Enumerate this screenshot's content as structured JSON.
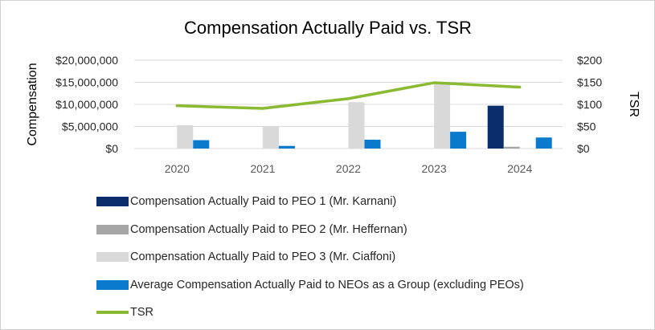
{
  "chart_data": {
    "type": "bar",
    "title": "Compensation Actually Paid vs. TSR",
    "xlabel": "",
    "ylabel": "Compensation",
    "y2label": "TSR",
    "categories": [
      "2020",
      "2021",
      "2022",
      "2023",
      "2024"
    ],
    "ylim": [
      0,
      20000000
    ],
    "y2lim": [
      0,
      200
    ],
    "yticks": [
      "$0",
      "$5,000,000",
      "$10,000,000",
      "$15,000,000",
      "$20,000,000"
    ],
    "y2ticks": [
      "$0",
      "$50",
      "$100",
      "$150",
      "$200"
    ],
    "grid": true,
    "legend_position": "bottom",
    "series": [
      {
        "name": "Compensation Actually Paid to PEO 1 (Mr. Karnani)",
        "kind": "bar",
        "axis": "left",
        "color": "#0b2d6b",
        "values": [
          0,
          0,
          0,
          0,
          9700000
        ]
      },
      {
        "name": "Compensation Actually Paid to PEO 2 (Mr. Heffernan)",
        "kind": "bar",
        "axis": "left",
        "color": "#a6a6a6",
        "values": [
          0,
          0,
          0,
          0,
          400000
        ]
      },
      {
        "name": "Compensation Actually Paid to PEO 3 (Mr. Ciaffoni)",
        "kind": "bar",
        "axis": "left",
        "color": "#d9d9d9",
        "values": [
          5300000,
          5100000,
          10500000,
          14700000,
          0
        ]
      },
      {
        "name": "Average Compensation Actually Paid to NEOs as a Group (excluding PEOs)",
        "kind": "bar",
        "axis": "left",
        "color": "#0a7acd",
        "values": [
          1900000,
          600000,
          2000000,
          3800000,
          2500000
        ]
      },
      {
        "name": "TSR",
        "kind": "line",
        "axis": "right",
        "color": "#8ab932",
        "values": [
          97,
          91,
          113,
          149,
          139
        ]
      }
    ]
  }
}
